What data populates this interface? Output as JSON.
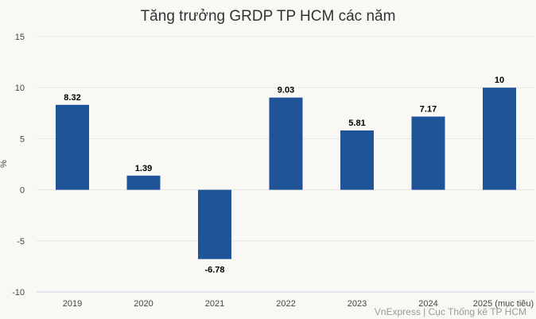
{
  "chart_data": {
    "type": "bar",
    "title": "Tăng trưởng GRDP TP HCM các năm",
    "ylabel": "%",
    "xlabel": "",
    "categories": [
      "2019",
      "2020",
      "2021",
      "2022",
      "2023",
      "2024",
      "2025 (mục tiêu)"
    ],
    "values": [
      8.32,
      1.39,
      -6.78,
      9.03,
      5.81,
      7.17,
      10
    ],
    "data_labels": [
      "8.32",
      "1.39",
      "-6.78",
      "9.03",
      "5.81",
      "7.17",
      "10"
    ],
    "ylim": [
      -10,
      15
    ],
    "yticks": [
      -10,
      -5,
      0,
      5,
      10,
      15
    ],
    "grid": true,
    "legend": "none",
    "bar_color": "#1f5499",
    "credit": "VnExpress | Cục Thống kê TP HCM"
  }
}
